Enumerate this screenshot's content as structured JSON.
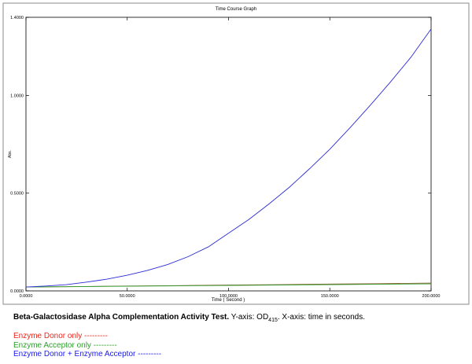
{
  "chart_data": {
    "type": "line",
    "title": "Time Course Graph",
    "xlabel": "Time ( Second )",
    "ylabel": "Abs.",
    "xlim": [
      0,
      200
    ],
    "ylim": [
      0,
      1.4
    ],
    "x_ticks": [
      "0.0000",
      "50.0000",
      "100.0000",
      "150.0000",
      "200.0000"
    ],
    "y_ticks": [
      "0.0000",
      "0.5000",
      "1.0000",
      "1.4000"
    ],
    "grid": false,
    "series": [
      {
        "name": "Enzyme Donor only",
        "color": "#8b5a2b",
        "x": [
          0,
          25,
          50,
          75,
          100,
          125,
          150,
          175,
          200
        ],
        "y": [
          0.02,
          0.022,
          0.025,
          0.027,
          0.03,
          0.032,
          0.035,
          0.037,
          0.04
        ]
      },
      {
        "name": "Enzyme Acceptor only",
        "color": "#2e9e2e",
        "x": [
          0,
          25,
          50,
          75,
          100,
          125,
          150,
          175,
          200
        ],
        "y": [
          0.02,
          0.022,
          0.024,
          0.026,
          0.028,
          0.03,
          0.032,
          0.034,
          0.036
        ]
      },
      {
        "name": "Enzyme Donor + Enzyme Acceptor",
        "color": "#2b2bd6",
        "x": [
          0,
          10,
          20,
          30,
          40,
          50,
          60,
          70,
          80,
          90,
          100,
          110,
          120,
          130,
          140,
          150,
          160,
          170,
          180,
          190,
          200
        ],
        "y": [
          0.02,
          0.025,
          0.032,
          0.045,
          0.06,
          0.08,
          0.105,
          0.135,
          0.175,
          0.225,
          0.295,
          0.365,
          0.445,
          0.53,
          0.625,
          0.725,
          0.835,
          0.95,
          1.07,
          1.195,
          1.34
        ]
      }
    ]
  },
  "caption": {
    "bold": "Beta-Galactosidase Alpha Complementation Activity Test.",
    "y_text": " Y-axis: OD",
    "y_sub": "415",
    "x_text": ". X-axis: time in seconds."
  },
  "legend": [
    {
      "label": "Enzyme Donor only ---------",
      "color": "#e8281e"
    },
    {
      "label": "Enzyme Acceptor only ---------",
      "color": "#2e9e2e"
    },
    {
      "label": "Enzyme Donor + Enzyme Acceptor ---------",
      "color": "#1a1aee"
    }
  ]
}
